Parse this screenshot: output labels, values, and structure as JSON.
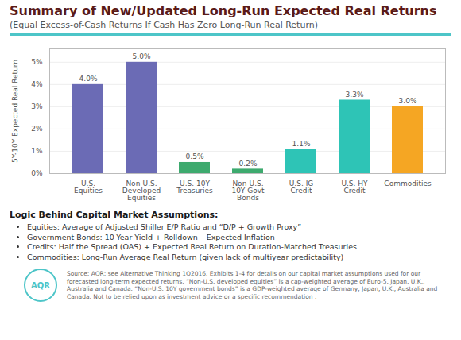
{
  "chart_data": {
    "type": "bar",
    "title": "Summary of New/Updated Long-Run Expected Real Returns",
    "subtitle": "(Equal Excess-of-Cash Returns If Cash Has Zero Long-Run Real Return)",
    "ylabel": "5Y-10Y Expected Real Return",
    "categories": [
      "U.S.\nEquities",
      "Non-U.S.\nDeveloped\nEquities",
      "U.S. 10Y\nTreasuries",
      "Non-U.S.\n10Y Govt\nBonds",
      "U.S. IG\nCredit",
      "U.S. HY\nCredit",
      "Commodities"
    ],
    "values": [
      4.0,
      5.0,
      0.5,
      0.2,
      1.1,
      3.3,
      3.0
    ],
    "value_labels": [
      "4.0%",
      "5.0%",
      "0.5%",
      "0.2%",
      "1.1%",
      "3.3%",
      "3.0%"
    ],
    "colors": [
      "#6B6BB5",
      "#6B6BB5",
      "#3DAA6E",
      "#3DAA6E",
      "#2EC4B6",
      "#2EC4B6",
      "#F5A623"
    ],
    "ylim": [
      0,
      5.6
    ],
    "yticks": [
      {
        "value": 0,
        "label": "0%"
      },
      {
        "value": 1,
        "label": "1%"
      },
      {
        "value": 2,
        "label": "2%"
      },
      {
        "value": 3,
        "label": "3%"
      },
      {
        "value": 4,
        "label": "4%"
      },
      {
        "value": 5,
        "label": "5%"
      }
    ],
    "grid": true,
    "data_labels": true,
    "annotations": {
      "heading": "Logic Behind Capital Market Assumptions:",
      "bullets": [
        "Equities: Average of Adjusted Shiller E/P Ratio and “D/P + Growth Proxy”",
        "Government Bonds: 10-Year Yield + Rolldown – Expected Inflation",
        "Credits: Half the Spread (OAS) + Expected Real Return on Duration-Matched Treasuries",
        "Commodities: Long-Run Average Real Return (given lack of multiyear predictability)"
      ],
      "source": [
        "Source: AQR; see Alternative Thinking 1Q2016. Exhibits 1-4 for details on our capital market assumptions used for our forecasted long-term expected",
        "returns. “Non-U.S. developed equities” is a cap-weighted average of Euro-5, Japan, U.K., Australia and Canada. “Non-U.S. 10Y government bonds” is a",
        "GDP-weighted average of Germany, Japan, U.K., Australia and Canada. Not to be relied upon as investment advice or a specific recommendation ."
      ],
      "logo": "AQR"
    }
  }
}
